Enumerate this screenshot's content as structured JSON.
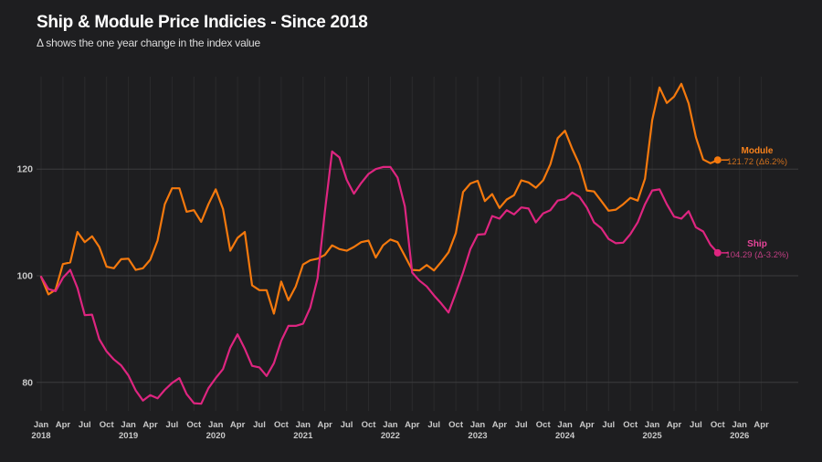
{
  "header": {
    "title": "Ship & Module Price Indicies - Since 2018",
    "subtitle": "Δ shows the one year change in the index value"
  },
  "colors": {
    "background": "#1e1e20",
    "grid_vertical": "#2a2a2c",
    "grid_horizontal": "#3c3c3e",
    "tick_text": "#c9c9c9",
    "module": "#f5790d",
    "ship": "#de2580"
  },
  "chart_data": {
    "type": "line",
    "title": "Ship & Module Price Indicies - Since 2018",
    "subtitle": "Δ shows the one year change in the index value",
    "x_start": "2018-01",
    "x_last_data": "2025-10",
    "x_axis_end": "2026-04",
    "x_tick_months": [
      "Jan",
      "Apr",
      "Jul",
      "Oct"
    ],
    "x_years": [
      "2018",
      "2019",
      "2020",
      "2021",
      "2022",
      "2023",
      "2024",
      "2025",
      "2026"
    ],
    "yticks": [
      80,
      100,
      120
    ],
    "ylim": [
      74,
      138
    ],
    "grid": "on",
    "legend_position": "end-of-line",
    "series": [
      {
        "name": "Module",
        "color": "#f5790d",
        "end_value": "121.72",
        "end_delta": "Δ6.2%",
        "end_label": "121.72 (Δ6.2%)",
        "values": [
          99.8,
          96.5,
          97.4,
          102.2,
          102.5,
          108.2,
          106.3,
          107.4,
          105.4,
          101.7,
          101.4,
          103.1,
          103.2,
          101.1,
          101.4,
          103.0,
          106.6,
          113.4,
          116.4,
          116.4,
          112.0,
          112.3,
          110.1,
          113.4,
          116.2,
          112.5,
          104.7,
          107.1,
          108.2,
          98.2,
          97.3,
          97.3,
          92.9,
          98.9,
          95.4,
          98.0,
          102.1,
          102.9,
          103.2,
          103.9,
          105.7,
          105.0,
          104.7,
          105.4,
          106.3,
          106.6,
          103.4,
          105.7,
          106.8,
          106.3,
          103.7,
          101.1,
          101.0,
          102.0,
          101.0,
          102.6,
          104.4,
          108.0,
          115.7,
          117.3,
          117.8,
          114.0,
          115.3,
          112.7,
          114.3,
          115.1,
          117.9,
          117.5,
          116.5,
          117.9,
          120.9,
          125.8,
          127.2,
          123.8,
          120.8,
          116.0,
          115.8,
          114.0,
          112.2,
          112.4,
          113.4,
          114.6,
          114.1,
          118.2,
          129.2,
          135.3,
          132.4,
          133.6,
          136.0,
          132.3,
          126.0,
          121.8,
          121.1,
          121.72
        ]
      },
      {
        "name": "Ship",
        "color": "#de2580",
        "end_value": "104.29",
        "end_delta": "Δ-3.2%",
        "end_label": "104.29 (Δ-3.2%)",
        "values": [
          99.8,
          97.5,
          97.1,
          99.6,
          101.1,
          97.7,
          92.6,
          92.7,
          88.1,
          85.8,
          84.3,
          83.2,
          81.3,
          78.5,
          76.6,
          77.6,
          77.0,
          78.6,
          79.9,
          80.8,
          77.8,
          76.1,
          76.0,
          78.9,
          80.8,
          82.5,
          86.5,
          89.0,
          86.3,
          83.1,
          82.8,
          81.2,
          83.6,
          87.8,
          90.6,
          90.6,
          91.0,
          94.0,
          99.5,
          112.0,
          123.3,
          122.2,
          118.0,
          115.4,
          117.4,
          119.1,
          120.0,
          120.4,
          120.4,
          118.4,
          113.0,
          100.6,
          99.1,
          98.0,
          96.3,
          94.8,
          93.1,
          96.8,
          100.6,
          105.0,
          107.7,
          107.8,
          111.2,
          110.7,
          112.3,
          111.5,
          112.8,
          112.6,
          110.0,
          111.7,
          112.3,
          114.1,
          114.4,
          115.6,
          114.8,
          112.8,
          110.0,
          108.9,
          106.9,
          106.1,
          106.2,
          107.8,
          110.0,
          113.4,
          116.0,
          116.2,
          113.4,
          111.1,
          110.7,
          112.1,
          109.1,
          108.3,
          105.8,
          104.29
        ]
      }
    ]
  }
}
